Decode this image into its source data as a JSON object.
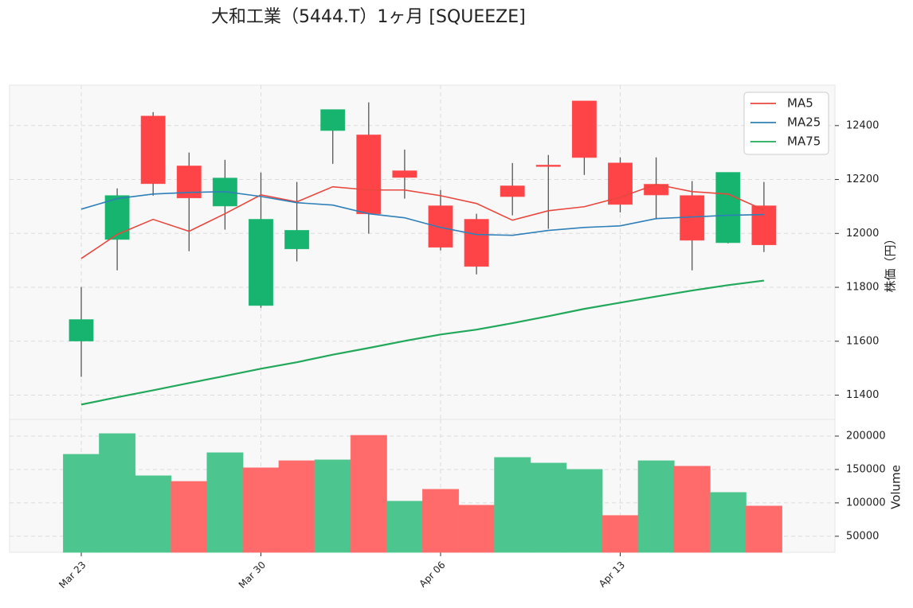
{
  "chart_data": {
    "type": "candlestick",
    "title": "大和工業（5444.T）1ヶ月 [SQUEEZE]",
    "categories": [
      "Mar 23",
      null,
      null,
      null,
      null,
      "Mar 30",
      null,
      null,
      null,
      null,
      "Apr 06",
      null,
      null,
      null,
      null,
      "Apr 13",
      null,
      null,
      null,
      null
    ],
    "open": [
      11601,
      11978,
      12435,
      12250,
      12102,
      11733,
      11943,
      12382,
      12365,
      12232,
      12102,
      12052,
      12176,
      12253,
      12491,
      12261,
      12182,
      12140,
      11966,
      12102
    ],
    "high": [
      11801,
      12167,
      12450,
      12300,
      12273,
      12226,
      12191,
      12459,
      12486,
      12311,
      12161,
      12073,
      12261,
      12291,
      12491,
      12282,
      12282,
      12194,
      12226,
      12191
    ],
    "low": [
      11468,
      11863,
      12140,
      11934,
      12014,
      11724,
      11896,
      12258,
      11999,
      12129,
      11937,
      11848,
      12067,
      12017,
      12217,
      12078,
      12052,
      11863,
      11963,
      11931
    ],
    "close": [
      11680,
      12140,
      12185,
      12132,
      12205,
      12052,
      12011,
      12459,
      12073,
      12208,
      11949,
      11878,
      12137,
      12250,
      12282,
      12108,
      12143,
      11975,
      12226,
      11958
    ],
    "up_color": "#16b46e",
    "down_color": "#ff4447",
    "series": [
      {
        "name": "MA5",
        "color": "#e8483f",
        "values": [
          11907,
          11996,
          12052,
          12008,
          12073,
          12143,
          12117,
          12173,
          12161,
          12161,
          12140,
          12111,
          12049,
          12084,
          12099,
          12134,
          12182,
          12155,
          12146,
          12087
        ]
      },
      {
        "name": "MA25",
        "color": "#2f7fb8",
        "values": [
          12090,
          12129,
          12146,
          12152,
          12155,
          12137,
          12114,
          12105,
          12073,
          12058,
          12022,
          11996,
          11993,
          12011,
          12022,
          12028,
          12055,
          12061,
          12067,
          12070
        ]
      },
      {
        "name": "MA75",
        "color": "#22a85a",
        "values": [
          11365,
          11392,
          11418,
          11445,
          11471,
          11498,
          11522,
          11550,
          11575,
          11601,
          11625,
          11643,
          11667,
          11693,
          11720,
          11743,
          11766,
          11788,
          11808,
          11825
        ]
      }
    ],
    "ylabel": "株価（円）",
    "ylim": [
      11310,
      12550
    ],
    "yticks": [
      11400,
      11600,
      11800,
      12000,
      12200,
      12400
    ],
    "legend": "upper right",
    "grid": true,
    "volume": {
      "ylabel": "Volume",
      "values": [
        172600,
        203600,
        140500,
        132000,
        175000,
        152400,
        163000,
        164300,
        201000,
        102400,
        120200,
        96400,
        167900,
        159500,
        150000,
        81000,
        163000,
        154800,
        115500,
        95200
      ],
      "colors": [
        "#4cc68e",
        "#4cc68e",
        "#4cc68e",
        "#ff6b6b",
        "#4cc68e",
        "#ff6b6b",
        "#ff6b6b",
        "#4cc68e",
        "#ff6b6b",
        "#4cc68e",
        "#ff6b6b",
        "#ff6b6b",
        "#4cc68e",
        "#4cc68e",
        "#4cc68e",
        "#ff6b6b",
        "#4cc68e",
        "#ff6b6b",
        "#4cc68e",
        "#ff6b6b"
      ],
      "ylim": [
        26000,
        225000
      ],
      "yticks": [
        50000,
        100000,
        150000,
        200000
      ]
    }
  }
}
